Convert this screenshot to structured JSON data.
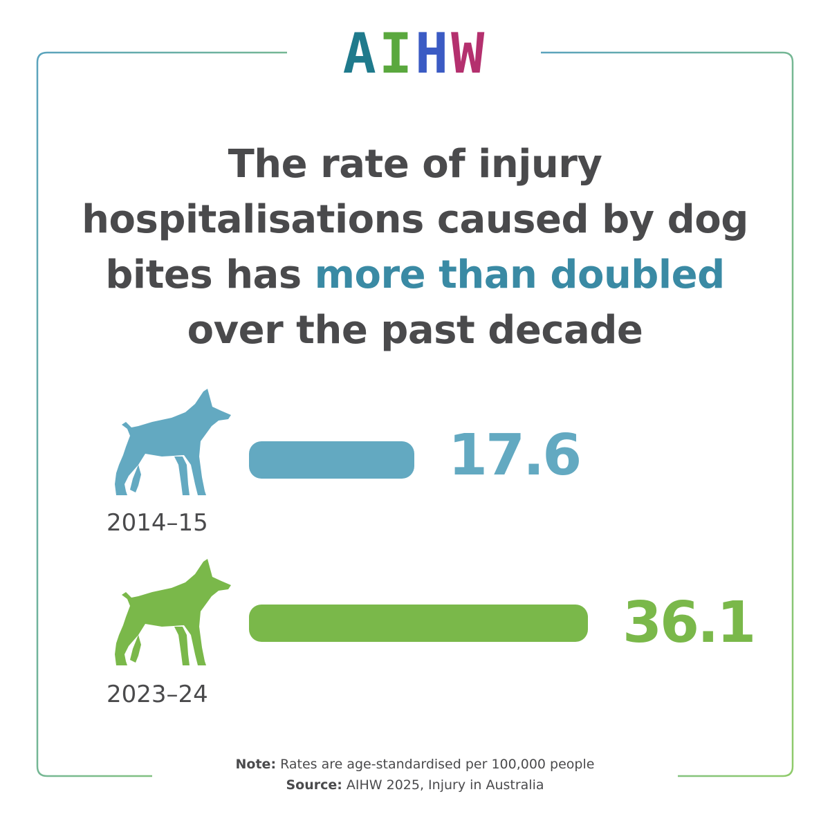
{
  "logo": {
    "letters": [
      "A",
      "I",
      "H",
      "W"
    ]
  },
  "headline": {
    "line1": "The rate of injury",
    "line2": "hospitalisations caused by dog",
    "line3_before": "bites has ",
    "line3_highlight": "more than doubled",
    "line4": "over the past decade"
  },
  "chart_data": {
    "type": "bar",
    "categories": [
      "2014–15",
      "2023–24"
    ],
    "values": [
      17.6,
      36.1
    ],
    "value_labels": [
      "17.6",
      "36.1"
    ],
    "colors": [
      "#63a9c1",
      "#7ab84a"
    ]
  },
  "colors": {
    "highlight": "#3a8aa4",
    "text": "#4a4a4c",
    "frame_start": "#5aa3bd",
    "frame_end": "#8fcb6a"
  },
  "icons": [
    "dog-icon"
  ],
  "footer": {
    "note_label": "Note:",
    "note_text": " Rates are age-standardised per 100,000 people",
    "source_label": "Source:",
    "source_text": " AIHW 2025, Injury in Australia"
  }
}
